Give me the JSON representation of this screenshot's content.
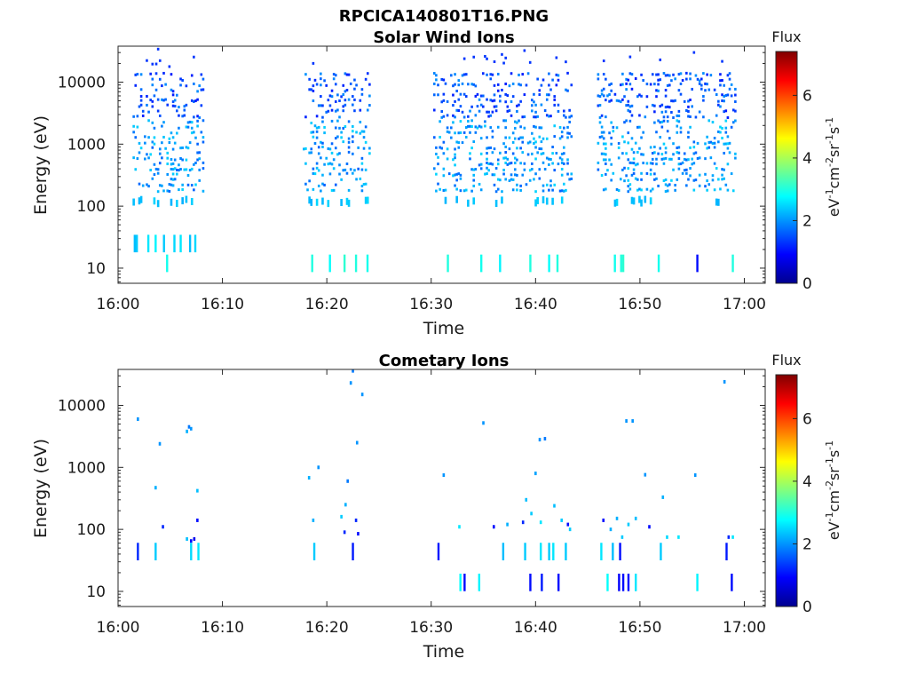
{
  "figure_title": "RPCICA140801T16.PNG",
  "chart_data": [
    {
      "type": "heatmap",
      "title": "Solar Wind Ions",
      "xlabel": "Time",
      "ylabel": "Energy (eV)",
      "x_ticks": [
        "16:00",
        "16:10",
        "16:20",
        "16:30",
        "16:40",
        "16:50",
        "17:00"
      ],
      "y_ticks": [
        "10",
        "100",
        "1000",
        "10000"
      ],
      "y_tick_values": [
        10,
        100,
        1000,
        10000
      ],
      "xlim": [
        0,
        62
      ],
      "ylim": [
        5.7,
        38000
      ],
      "y_scale": "log",
      "colorbar": {
        "label": "Flux",
        "unit": "eV-1cm-2sr-1s-1",
        "ticks": [
          "0",
          "2",
          "4",
          "6"
        ],
        "tick_values": [
          0,
          2,
          4,
          6
        ],
        "range": [
          0,
          7.4
        ]
      },
      "bursts": [
        [
          1.5,
          8.2
        ],
        [
          17.8,
          24.2
        ],
        [
          30.3,
          43.5
        ],
        [
          46.0,
          59.2
        ]
      ],
      "bands": [
        {
          "e": 25,
          "xs": [
            1.6,
            1.8,
            2.9,
            3.6,
            4.4,
            5.4,
            6.0,
            6.9,
            7.4
          ],
          "v": [
            2.3,
            2.4,
            2.6,
            2.7,
            2.4,
            2.5,
            2.6,
            2.3,
            2.5
          ]
        },
        {
          "e": 12,
          "xs": [
            4.7,
            18.6,
            20.3,
            21.7,
            22.8,
            23.9,
            31.6,
            34.8,
            36.6,
            39.5,
            41.3,
            42.1,
            47.6,
            48.2,
            48.4,
            51.8,
            55.5,
            58.9
          ],
          "v": [
            2.9,
            3.0,
            2.8,
            3.1,
            3.0,
            2.9,
            3.0,
            2.9,
            2.7,
            3.0,
            2.8,
            3.0,
            2.9,
            3.0,
            3.1,
            2.9,
            1.0,
            3.0
          ]
        }
      ]
    },
    {
      "type": "heatmap",
      "title": "Cometary Ions",
      "xlabel": "Time",
      "ylabel": "Energy (eV)",
      "x_ticks": [
        "16:00",
        "16:10",
        "16:20",
        "16:30",
        "16:40",
        "16:50",
        "17:00"
      ],
      "y_ticks": [
        "10",
        "100",
        "1000",
        "10000"
      ],
      "y_tick_values": [
        10,
        100,
        1000,
        10000
      ],
      "xlim": [
        0,
        62
      ],
      "ylim": [
        5.7,
        38000
      ],
      "y_scale": "log",
      "colorbar": {
        "label": "Flux",
        "unit": "eV-1cm-2sr-1s-1",
        "ticks": [
          "0",
          "2",
          "4",
          "6"
        ],
        "tick_values": [
          0,
          2,
          4,
          6
        ],
        "range": [
          0,
          7.4
        ]
      },
      "cells": [
        [
          1.9,
          6000,
          2.0
        ],
        [
          4.0,
          2400,
          2.0
        ],
        [
          6.8,
          4500,
          1.8
        ],
        [
          6.6,
          3800,
          2.2
        ],
        [
          7.0,
          4200,
          2.0
        ],
        [
          7.6,
          420,
          2.3
        ],
        [
          3.6,
          470,
          2.2
        ],
        [
          4.3,
          110,
          1.2
        ],
        [
          6.6,
          70,
          2.3
        ],
        [
          7.0,
          65,
          1.0
        ],
        [
          7.3,
          70,
          0.8
        ],
        [
          7.6,
          140,
          1.0
        ],
        [
          18.3,
          680,
          2.2
        ],
        [
          19.2,
          1000,
          2.0
        ],
        [
          18.7,
          140,
          2.2
        ],
        [
          21.4,
          160,
          2.4
        ],
        [
          21.8,
          250,
          2.2
        ],
        [
          22.0,
          600,
          1.8
        ],
        [
          22.3,
          23000,
          2.0
        ],
        [
          22.5,
          36000,
          1.8
        ],
        [
          22.9,
          2500,
          2.0
        ],
        [
          23.4,
          15000,
          2.0
        ],
        [
          22.8,
          140,
          1.2
        ],
        [
          21.7,
          90,
          1.2
        ],
        [
          23.0,
          85,
          1.0
        ],
        [
          31.2,
          750,
          2.0
        ],
        [
          32.7,
          110,
          2.6
        ],
        [
          36.0,
          110,
          1.0
        ],
        [
          35.0,
          5200,
          2.0
        ],
        [
          37.3,
          120,
          2.2
        ],
        [
          38.8,
          130,
          1.2
        ],
        [
          39.1,
          300,
          2.3
        ],
        [
          39.6,
          180,
          2.4
        ],
        [
          40.0,
          800,
          2.1
        ],
        [
          40.4,
          2800,
          2.0
        ],
        [
          40.9,
          2900,
          1.8
        ],
        [
          40.5,
          130,
          2.6
        ],
        [
          41.8,
          240,
          2.3
        ],
        [
          42.5,
          140,
          2.4
        ],
        [
          43.1,
          120,
          1.0
        ],
        [
          43.3,
          100,
          2.4
        ],
        [
          46.5,
          140,
          1.0
        ],
        [
          47.2,
          100,
          2.2
        ],
        [
          47.8,
          150,
          2.2
        ],
        [
          48.7,
          5600,
          2.0
        ],
        [
          48.9,
          120,
          2.4
        ],
        [
          49.3,
          5600,
          2.0
        ],
        [
          49.6,
          150,
          2.3
        ],
        [
          50.5,
          760,
          2.0
        ],
        [
          50.9,
          110,
          1.0
        ],
        [
          52.2,
          330,
          2.2
        ],
        [
          52.6,
          75,
          2.5
        ],
        [
          53.7,
          75,
          2.6
        ],
        [
          55.3,
          750,
          2.0
        ],
        [
          58.1,
          24000,
          2.0
        ],
        [
          58.5,
          75,
          1.2
        ],
        [
          58.9,
          75,
          2.6
        ],
        [
          48.3,
          75,
          2.4
        ]
      ],
      "bands": [
        {
          "e": 44,
          "xs": [
            1.9,
            3.6,
            7.0,
            7.7,
            18.8,
            22.5,
            30.7,
            36.9,
            39.0,
            40.5,
            41.3,
            41.7,
            42.9,
            46.3,
            47.4,
            48.1,
            52.0,
            58.3
          ],
          "v": [
            1.2,
            2.4,
            2.5,
            2.6,
            2.4,
            1.1,
            1.1,
            2.3,
            2.4,
            2.6,
            2.4,
            2.6,
            2.4,
            2.6,
            2.3,
            1.0,
            2.4,
            1.1
          ]
        },
        {
          "e": 14,
          "xs": [
            32.8,
            33.2,
            34.6,
            39.5,
            40.6,
            42.2,
            46.9,
            48.0,
            48.4,
            48.9,
            49.6,
            55.5,
            58.8
          ],
          "v": [
            2.8,
            1.0,
            2.7,
            1.0,
            1.1,
            1.0,
            2.8,
            0.9,
            1.0,
            1.0,
            2.6,
            2.7,
            1.0
          ]
        }
      ]
    }
  ]
}
